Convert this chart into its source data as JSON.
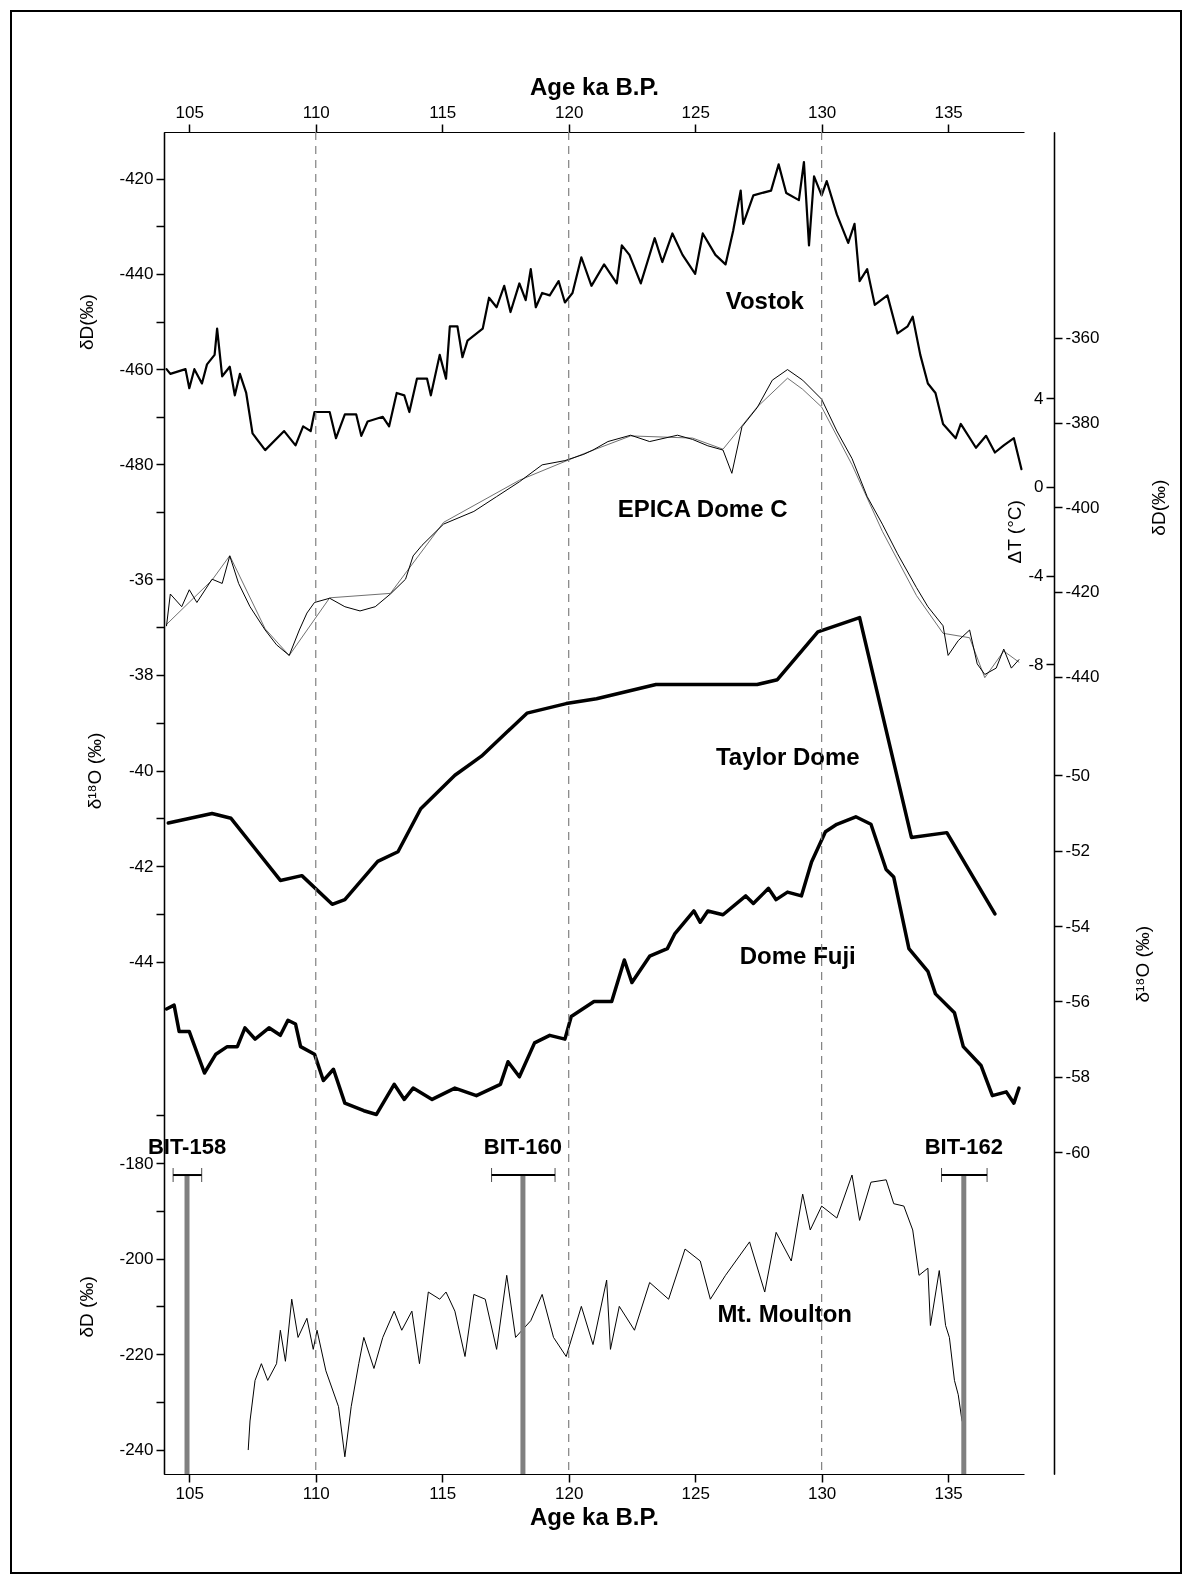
{
  "chart_data": [
    {
      "type": "line",
      "xlabel": "Age ka B.P.",
      "xlim": [
        104,
        138
      ],
      "xticks": [
        105,
        110,
        115,
        120,
        125,
        130,
        135
      ],
      "ylabel": "δD(‰)",
      "ylim": [
        -692,
        -410.2
      ],
      "yticks": [
        -420,
        -440,
        -460,
        -480,
        {
          "value": -430,
          "label": null
        },
        {
          "value": -450,
          "label": null
        },
        {
          "value": -470,
          "label": null
        },
        {
          "value": -490,
          "label": null
        }
      ],
      "y2label": "δD(‰)",
      "y2lim": [
        -628.3,
        -311.4
      ],
      "y2ticks": [
        -360,
        -380,
        -400,
        -420,
        -440
      ],
      "y3label": "ΔT (°C)",
      "y3lim": [
        -44.5,
        16
      ],
      "y3ticks": [
        4,
        0,
        -4,
        -8
      ],
      "series": [
        {
          "name": "Vostok",
          "color": "#000000",
          "x": [
            104.1,
            104.25,
            104.85,
            105,
            105.2,
            105.5,
            105.7,
            106.0,
            106.1,
            106.3,
            106.6,
            106.8,
            107.0,
            107.25,
            107.5,
            108.0,
            108.75,
            109.2,
            109.5,
            109.8,
            109.95,
            110.55,
            110.8,
            111.15,
            111.6,
            111.8,
            112.05,
            112.65,
            112.9,
            113.2,
            113.5,
            113.7,
            114.0,
            114.4,
            114.55,
            114.9,
            115.15,
            115.3,
            115.6,
            115.8,
            116.0,
            116.6,
            116.85,
            117.15,
            117.45,
            117.7,
            118.05,
            118.3,
            118.5,
            118.7,
            118.95,
            119.25,
            119.6,
            119.85,
            120.15,
            120.5,
            120.9,
            121.4,
            121.9,
            122.1,
            122.4,
            122.85,
            123.4,
            123.7,
            124.1,
            124.5,
            125.0,
            125.3,
            125.8,
            126.2,
            126.5,
            126.8,
            126.9,
            127.3,
            128.0,
            128.3,
            128.6,
            129.1,
            129.3,
            129.5,
            129.7,
            130.0,
            130.2,
            130.6,
            131.05,
            131.3,
            131.5,
            131.8,
            132.1,
            132.6,
            133.0,
            133.4,
            133.6,
            133.9,
            134.2,
            134.5,
            134.8,
            135.3,
            135.5,
            136.1,
            136.5,
            136.85,
            137.2,
            137.6,
            137.9
          ],
          "values": [
            -460,
            -461,
            -460,
            -464,
            -460,
            -463,
            -459,
            -457,
            -451.5,
            -461.5,
            -459.5,
            -465.5,
            -461,
            -465,
            -473.5,
            -477,
            -473,
            -476,
            -472,
            -473,
            -469,
            -469,
            -474.5,
            -469.5,
            -469.5,
            -474,
            -471,
            -470,
            -472,
            -465,
            -465.5,
            -469,
            -462,
            -462,
            -465.5,
            -457,
            -462,
            -451,
            -451,
            -457.5,
            -454,
            -451.5,
            -445,
            -447,
            -442.5,
            -448,
            -442,
            -445.5,
            -439,
            -447,
            -444,
            -444.5,
            -441.5,
            -446,
            -444,
            -436.5,
            -442.5,
            -438,
            -442,
            -434,
            -436,
            -442,
            -432.5,
            -437.5,
            -431.5,
            -436,
            -440,
            -431.5,
            -436,
            -438,
            -431,
            -422.5,
            -429.5,
            -423.5,
            -422.5,
            -417,
            -423,
            -424.5,
            -416.5,
            -434,
            -419.5,
            -423.5,
            -420.5,
            -427.5,
            -433.5,
            -429.5,
            -441.5,
            -439,
            -446.5,
            -444.5,
            -452.5,
            -451,
            -449,
            -457,
            -463,
            -465,
            -471.5,
            -474.5,
            -471.5,
            -476.5,
            -474,
            -477.5,
            -476,
            -474.5,
            -481
          ]
        },
        {
          "axis": "y3",
          "color": "#707070",
          "x": [
            104.1,
            105.9,
            106.6,
            108.0,
            108.95,
            110.55,
            112.95,
            115.05,
            118.05,
            120.6,
            122.45,
            124.9,
            126.1,
            127.45,
            128.65,
            129.25,
            130.0,
            131.2,
            132.4,
            133.75,
            134.8,
            135.85,
            136.45,
            137.2,
            137.8
          ],
          "values": [
            -6.2,
            -4.2,
            -3.1,
            -6.4,
            -7.6,
            -5.0,
            -4.8,
            -1.6,
            0.3,
            1.5,
            2.3,
            2.2,
            1.7,
            3.6,
            4.9,
            4.4,
            3.6,
            1.0,
            -2.0,
            -4.9,
            -6.6,
            -6.8,
            -8.6,
            -7.4,
            -7.9
          ]
        },
        {
          "name": "EPICA Dome C",
          "axis": "y2",
          "color": "#000000",
          "x": [
            104.1,
            104.25,
            104.7,
            105,
            105.3,
            105.9,
            106.3,
            106.6,
            106.95,
            107.4,
            108.0,
            108.45,
            108.95,
            109.35,
            109.65,
            109.95,
            110.55,
            111.15,
            111.75,
            112.35,
            112.95,
            113.55,
            113.85,
            114.2,
            115.05,
            116.25,
            117.15,
            118.05,
            118.95,
            119.85,
            120.6,
            120.96,
            121.55,
            122.45,
            123.2,
            124.3,
            124.9,
            125.5,
            126.1,
            126.45,
            126.85,
            127.45,
            128.05,
            128.65,
            129.25,
            130.0,
            130.6,
            131.2,
            131.8,
            132.4,
            133.0,
            133.75,
            134.2,
            134.8,
            135.0,
            135.4,
            135.85,
            136.15,
            136.45,
            136.9,
            137.2,
            137.5,
            137.8
          ],
          "values": [
            -428,
            -420.5,
            -423.5,
            -419.5,
            -422.5,
            -417,
            -418,
            -411.5,
            -418,
            -423.5,
            -429,
            -432.5,
            -435,
            -429,
            -425,
            -422.5,
            -421.5,
            -423.5,
            -424.5,
            -423.5,
            -420.5,
            -417,
            -411.5,
            -409,
            -404,
            -401,
            -397.5,
            -394,
            -390,
            -389,
            -387.5,
            -386.5,
            -384.5,
            -383,
            -384.5,
            -383,
            -384,
            -385.5,
            -386.5,
            -392,
            -381,
            -376.5,
            -370,
            -367.5,
            -370,
            -374.5,
            -382,
            -388.5,
            -397.5,
            -404,
            -411,
            -419,
            -423.5,
            -428,
            -435,
            -431.5,
            -429,
            -437,
            -439.5,
            -438,
            -433.5,
            -438,
            -436
          ]
        }
      ]
    },
    {
      "type": "line",
      "xlabel": "Age ka B.P.",
      "xlim": [
        104,
        138
      ],
      "xticks": [
        105,
        110,
        115,
        120,
        125,
        130,
        135
      ],
      "ylabel": "δ¹⁸O (‰)",
      "ylim": [
        -54.72,
        -26.64
      ],
      "yticks": [
        -36,
        -38,
        -40,
        -42,
        -44,
        {
          "value": -37,
          "label": null
        },
        {
          "value": -39,
          "label": null
        },
        {
          "value": -41,
          "label": null
        },
        {
          "value": -43,
          "label": null
        }
      ],
      "y2label": "δ¹⁸O (‰)",
      "y2lim": [
        -68.54,
        -32.93
      ],
      "y2ticks": [
        -50,
        -52,
        -54,
        -56,
        -58,
        -60
      ],
      "y3label": "δD (‰)",
      "y3lim": [
        -245.1,
        35.9
      ],
      "y3ticks": [
        -180,
        -200,
        -220,
        -240,
        {
          "value": -170,
          "label": null
        },
        {
          "value": -190,
          "label": null
        },
        {
          "value": -210,
          "label": null
        },
        {
          "value": -230,
          "label": null
        }
      ],
      "ref_lines": [
        {
          "axis": "x",
          "value": 110,
          "color": "#808080",
          "line_style": "dashed"
        },
        {
          "axis": "x",
          "value": 120,
          "color": "#808080",
          "line_style": "dashed"
        },
        {
          "axis": "x",
          "value": 130,
          "color": "#808080",
          "line_style": "dashed"
        }
      ],
      "series": [
        {
          "name": "Taylor Dome",
          "color": "#000000",
          "x": [
            104.17,
            105.9,
            106.65,
            108.6,
            109.45,
            110.65,
            111.15,
            112.45,
            113.25,
            114.15,
            115.5,
            116.55,
            118.35,
            119.9,
            121.1,
            123.45,
            124.4,
            127.45,
            128.25,
            129.85,
            131.5,
            133.55,
            134.95,
            136.85
          ],
          "values": [
            -41.1,
            -40.9,
            -41.0,
            -42.3,
            -42.2,
            -42.8,
            -42.7,
            -41.9,
            -41.7,
            -40.8,
            -40.1,
            -39.7,
            -38.8,
            -38.6,
            -38.5,
            -38.2,
            -38.2,
            -38.2,
            -38.1,
            -37.1,
            -36.8,
            -41.4,
            -41.3,
            -43.0
          ]
        },
        {
          "name": "Dome Fuji",
          "axis": "y2",
          "color": "#000000",
          "x": [
            104.1,
            104.4,
            104.6,
            105.0,
            105.6,
            106.05,
            106.5,
            106.9,
            107.2,
            107.6,
            108.15,
            108.6,
            108.9,
            109.2,
            109.4,
            109.95,
            110.3,
            110.7,
            111.15,
            111.9,
            112.4,
            113.1,
            113.5,
            113.85,
            114.6,
            115.5,
            116.35,
            117.3,
            117.6,
            118.05,
            118.65,
            119.25,
            119.85,
            120.1,
            121.0,
            121.7,
            122.2,
            122.5,
            123.2,
            123.9,
            124.2,
            124.95,
            125.2,
            125.5,
            126.1,
            127.0,
            127.3,
            127.9,
            128.2,
            128.65,
            129.2,
            129.6,
            130.15,
            130.6,
            131.35,
            131.95,
            132.55,
            132.85,
            133.45,
            134.2,
            134.5,
            135.25,
            135.6,
            136.3,
            136.75,
            137.3,
            137.6,
            137.8
          ],
          "values": [
            -56.2,
            -56.1,
            -56.8,
            -56.8,
            -57.9,
            -57.4,
            -57.2,
            -57.2,
            -56.7,
            -57.0,
            -56.7,
            -56.9,
            -56.5,
            -56.6,
            -57.2,
            -57.4,
            -58.1,
            -57.8,
            -58.7,
            -58.9,
            -59.0,
            -58.2,
            -58.6,
            -58.3,
            -58.6,
            -58.3,
            -58.5,
            -58.2,
            -57.6,
            -58.0,
            -57.1,
            -56.9,
            -57.0,
            -56.4,
            -56.0,
            -56.0,
            -54.9,
            -55.5,
            -54.8,
            -54.6,
            -54.2,
            -53.6,
            -53.9,
            -53.6,
            -53.7,
            -53.2,
            -53.4,
            -53.0,
            -53.3,
            -53.1,
            -53.2,
            -52.3,
            -51.5,
            -51.3,
            -51.1,
            -51.3,
            -52.5,
            -52.7,
            -54.6,
            -55.2,
            -55.8,
            -56.3,
            -57.2,
            -57.7,
            -58.5,
            -58.4,
            -58.7,
            -58.3
          ]
        },
        {
          "name": "Mt. Moulton",
          "axis": "y3",
          "color": "#000000",
          "x": [
            107.33,
            107.4,
            107.6,
            107.85,
            108.1,
            108.45,
            108.6,
            108.8,
            109.05,
            109.3,
            109.65,
            109.9,
            110.05,
            110.4,
            110.9,
            111.15,
            111.4,
            111.7,
            111.9,
            112.3,
            112.65,
            113.1,
            113.4,
            113.8,
            114.1,
            114.45,
            114.9,
            115.15,
            115.5,
            115.9,
            116.25,
            116.7,
            117.15,
            117.55,
            117.9,
            118.5,
            118.95,
            119.4,
            119.9,
            120.5,
            120.96,
            121.5,
            121.65,
            122.0,
            122.6,
            123.2,
            123.95,
            124.6,
            125.2,
            125.6,
            126.2,
            127.15,
            127.75,
            128.2,
            128.8,
            129.25,
            129.55,
            130.0,
            130.6,
            131.2,
            131.5,
            131.95,
            132.55,
            132.85,
            133.25,
            133.6,
            133.85,
            134.2,
            134.3,
            134.65,
            134.9,
            135.05,
            135.25,
            135.4,
            135.55
          ],
          "values": [
            -240,
            -234,
            -225.5,
            -222,
            -225.5,
            -222,
            -215,
            -221.5,
            -208.5,
            -216.5,
            -212.5,
            -219,
            -215,
            -223.5,
            -231,
            -241.5,
            -231,
            -222,
            -216.5,
            -223,
            -216.5,
            -211,
            -215,
            -211,
            -222,
            -207,
            -208.5,
            -207,
            -211,
            -220.5,
            -207.5,
            -208.5,
            -219,
            -203.5,
            -216.5,
            -213,
            -207.5,
            -216.5,
            -220.5,
            -210,
            -218,
            -204.5,
            -219,
            -210,
            -215,
            -205,
            -208.5,
            -198,
            -200.5,
            -208.5,
            -203.5,
            -196.5,
            -207,
            -194.5,
            -200.5,
            -186.5,
            -194,
            -189,
            -191.5,
            -182.5,
            -192,
            -184,
            -183.5,
            -188.5,
            -189,
            -194,
            -203.5,
            -202,
            -214,
            -202.5,
            -214,
            -216.5,
            -225.5,
            -228.5,
            -234
          ]
        },
        {
          "type": "bar",
          "axis": "y3",
          "color": "#808080",
          "x": [
            104.91,
            118.19,
            135.62
          ],
          "base": [
            -245.1,
            -245.1,
            -245.1
          ],
          "values": [
            62.6,
            62.6,
            62.6
          ],
          "xerrors": [
            [
              104.36,
              105.49
            ],
            [
              116.95,
              119.46
            ],
            [
              134.74,
              136.54
            ]
          ],
          "value_labels": [
            "BIT-158",
            "BIT-160",
            "BIT-162"
          ]
        }
      ]
    }
  ]
}
